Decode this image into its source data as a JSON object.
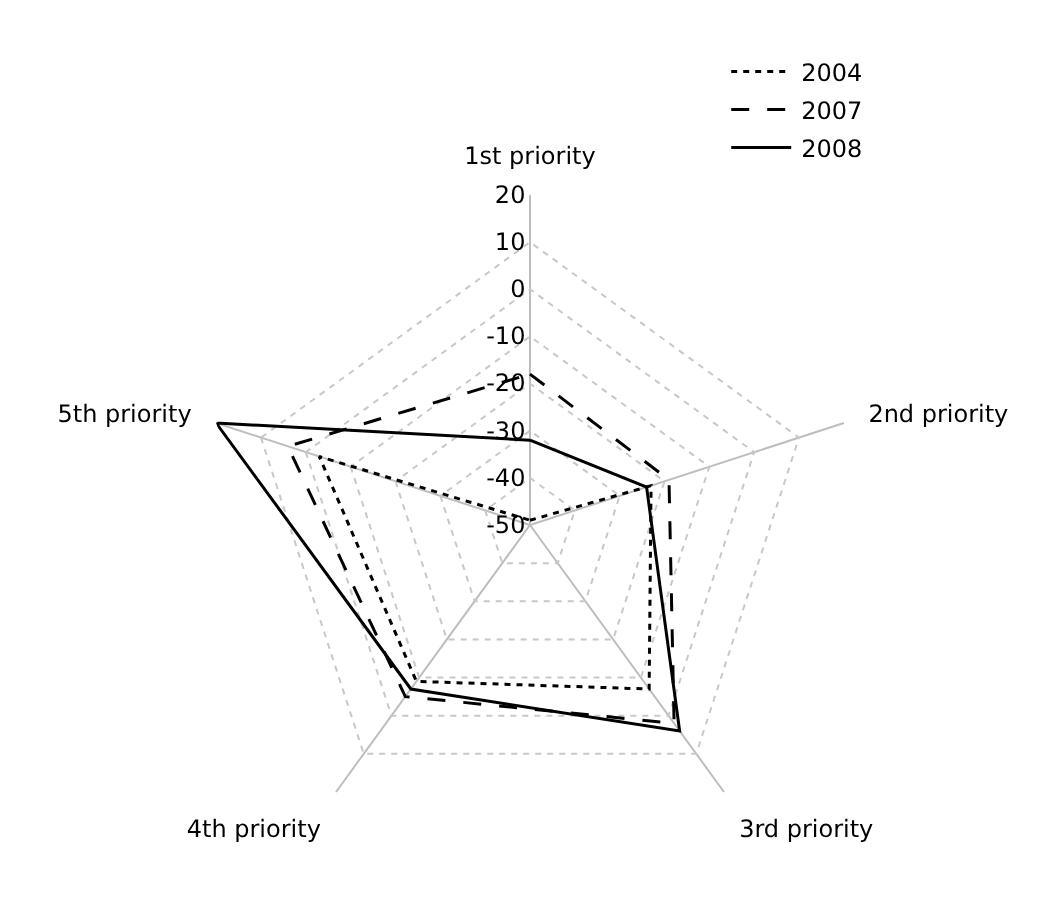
{
  "chart_data": {
    "type": "radar",
    "categories": [
      "1st priority",
      "2nd priority",
      "3rd priority",
      "4th priority",
      "5th priority"
    ],
    "series": [
      {
        "name": "2004",
        "color": "#000000",
        "line_style": "dotted",
        "values": [
          -49,
          -23,
          -7,
          -9,
          -3
        ]
      },
      {
        "name": "2007",
        "color": "#000000",
        "line_style": "dashed",
        "values": [
          -18,
          -19,
          2,
          -5,
          4
        ]
      },
      {
        "name": "2008",
        "color": "#000000",
        "line_style": "solid",
        "values": [
          -32,
          -24,
          4,
          -7,
          20
        ]
      }
    ],
    "ylim": [
      -50,
      20
    ],
    "yticks": [
      -50,
      -40,
      -30,
      -20,
      -10,
      0,
      10,
      20
    ],
    "grid": true,
    "legend": "top right",
    "marker": "none"
  }
}
